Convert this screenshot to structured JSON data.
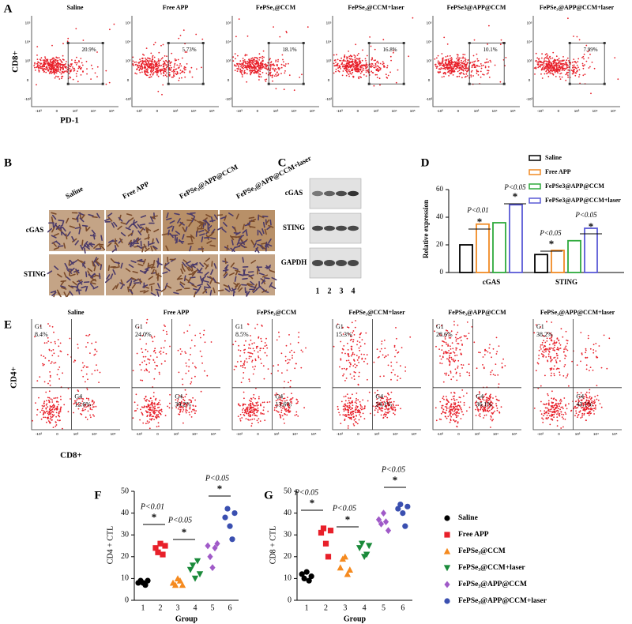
{
  "panel_a": {
    "label": "A",
    "y_label": "CD8+",
    "x_label": "PD-1",
    "ticks": [
      "-10³",
      "0",
      "10³",
      "10⁴",
      "10⁵"
    ],
    "plots": [
      {
        "title": "Saline",
        "gate": "20.9%"
      },
      {
        "title": "Free APP",
        "gate": "5.73%"
      },
      {
        "title": "FePSe₃@CCM",
        "gate": "18.1%"
      },
      {
        "title": "FePSe₃@CCM+laser",
        "gate": "16.8%"
      },
      {
        "title": "FePSe3@APP@CCM",
        "gate": "10.1%"
      },
      {
        "title": "FePSe₃@APP@CCM+laser",
        "gate": "7.99%"
      }
    ]
  },
  "panel_b": {
    "label": "B",
    "columns": [
      "Saline",
      "Free APP",
      "FePSe₃@APP@CCM",
      "FePSe₃@APP@CCM+laser"
    ],
    "rows": [
      "cGAS",
      "STING"
    ]
  },
  "panel_c": {
    "label": "C",
    "rows": [
      "cGAS",
      "STING",
      "GAPDH"
    ],
    "lanes": [
      "1",
      "2",
      "3",
      "4"
    ]
  },
  "panel_d": {
    "type": "bar",
    "label": "D",
    "y_label": "Relative expression",
    "categories": [
      "cGAS",
      "STING"
    ],
    "series": [
      {
        "name": "Saline",
        "color": "#000000",
        "values": [
          20,
          13
        ]
      },
      {
        "name": "Free APP",
        "color": "#f08a24",
        "values": [
          35,
          16
        ]
      },
      {
        "name": "FePSe3@APP@CCM",
        "color": "#2eaa3c",
        "values": [
          36,
          23
        ]
      },
      {
        "name": "FePSe3@APP@CCM+laser",
        "color": "#5a5ad6",
        "values": [
          49,
          32
        ]
      }
    ],
    "ylim": [
      0,
      60
    ],
    "yticks": [
      0,
      20,
      40,
      60
    ],
    "annotations": [
      "P<0.01",
      "*",
      "P<0.05",
      "*",
      "P<0.05",
      "*",
      "P<0.05",
      "*"
    ]
  },
  "panel_e": {
    "label": "E",
    "y_label": "CD4+",
    "x_label": "CD8+",
    "gate_names": [
      "G1",
      "G4"
    ],
    "ticks": [
      "-10³",
      "0",
      "10³",
      "10⁴",
      "10⁵"
    ],
    "plots": [
      {
        "title": "Saline",
        "g1": "8.4%",
        "g4": "12.6%"
      },
      {
        "title": "Free APP",
        "g1": "24.0%",
        "g4": "30.2%"
      },
      {
        "title": "FePSe₃@CCM",
        "g1": "8.5%",
        "g4": "13.6%"
      },
      {
        "title": "FePSe₃@CCM+laser",
        "g1": "15.3%",
        "g4": "24.1%"
      },
      {
        "title": "FePSe₃@APP@CCM",
        "g1": "28.6%",
        "g4": "36.1%"
      },
      {
        "title": "FePSe₃@APP@CCM+laser",
        "g1": "38.2%",
        "g4": "43.1%"
      }
    ]
  },
  "group_legend": [
    {
      "name": "Saline",
      "color": "#000000",
      "marker": "circle"
    },
    {
      "name": "Free APP",
      "color": "#e8202a",
      "marker": "square"
    },
    {
      "name": "FePSe₃@CCM",
      "color": "#f58a1f",
      "marker": "triangle"
    },
    {
      "name": "FePSe₃@CCM+laser",
      "color": "#1a8a3a",
      "marker": "triangle-down"
    },
    {
      "name": "FePSe₃@APP@CCM",
      "color": "#a05ac8",
      "marker": "diamond"
    },
    {
      "name": "FePSe₃@APP@CCM+laser",
      "color": "#3a4fb0",
      "marker": "circle"
    }
  ],
  "panel_f": {
    "type": "dot",
    "label": "F",
    "y_label": "CD4 + CTL",
    "x_label": "Group",
    "categories": [
      "1",
      "2",
      "3",
      "4",
      "5",
      "6"
    ],
    "values": [
      [
        8,
        9,
        8,
        7,
        9
      ],
      [
        24,
        22,
        26,
        21,
        25
      ],
      [
        8,
        7,
        10,
        9,
        7
      ],
      [
        14,
        16,
        10,
        18,
        12
      ],
      [
        25,
        20,
        15,
        24,
        26
      ],
      [
        38,
        42,
        34,
        28,
        40
      ]
    ],
    "ylim": [
      0,
      50
    ],
    "yticks": [
      0,
      10,
      20,
      30,
      40,
      50
    ],
    "annotations": [
      "P<0.01",
      "*",
      "P<0.05",
      "*",
      "P<0.05",
      "*"
    ]
  },
  "panel_g": {
    "type": "dot",
    "label": "G",
    "y_label": "CD8 + CTL",
    "x_label": "Group",
    "categories": [
      "1",
      "2",
      "3",
      "4",
      "5",
      "6"
    ],
    "values": [
      [
        12,
        10,
        13,
        9,
        11
      ],
      [
        31,
        33,
        26,
        20,
        32
      ],
      [
        15,
        19,
        20,
        12,
        14
      ],
      [
        24,
        26,
        20,
        21,
        25
      ],
      [
        37,
        35,
        40,
        36,
        32
      ],
      [
        42,
        44,
        40,
        34,
        43
      ]
    ],
    "ylim": [
      0,
      50
    ],
    "yticks": [
      0,
      10,
      20,
      30,
      40,
      50
    ],
    "annotations": [
      "P<0.05",
      "*",
      "P<0.05",
      "*",
      "P<0.05",
      "*"
    ]
  }
}
